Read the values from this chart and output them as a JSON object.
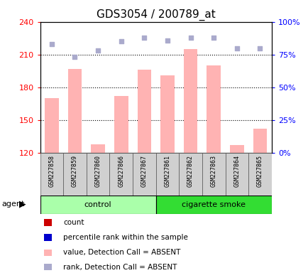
{
  "title": "GDS3054 / 200789_at",
  "samples": [
    "GSM227858",
    "GSM227859",
    "GSM227860",
    "GSM227866",
    "GSM227867",
    "GSM227861",
    "GSM227862",
    "GSM227863",
    "GSM227864",
    "GSM227865"
  ],
  "bar_values": [
    170,
    197,
    128,
    172,
    196,
    191,
    215,
    200,
    127,
    142
  ],
  "rank_values": [
    83,
    73,
    78,
    85,
    88,
    86,
    88,
    88,
    80,
    80
  ],
  "ylim_left": [
    120,
    240
  ],
  "ylim_right": [
    0,
    100
  ],
  "yticks_left": [
    120,
    150,
    180,
    210,
    240
  ],
  "yticks_right": [
    0,
    25,
    50,
    75,
    100
  ],
  "bar_color": "#ffb3b3",
  "rank_color": "#aaaacc",
  "control_color": "#aaffaa",
  "smoke_color": "#33dd33",
  "title_fontsize": 11,
  "tick_fontsize": 8,
  "legend_fontsize": 8,
  "legend_items": [
    {
      "color": "#cc0000",
      "label": "count"
    },
    {
      "color": "#0000cc",
      "label": "percentile rank within the sample"
    },
    {
      "color": "#ffb3b3",
      "label": "value, Detection Call = ABSENT"
    },
    {
      "color": "#aaaacc",
      "label": "rank, Detection Call = ABSENT"
    }
  ]
}
